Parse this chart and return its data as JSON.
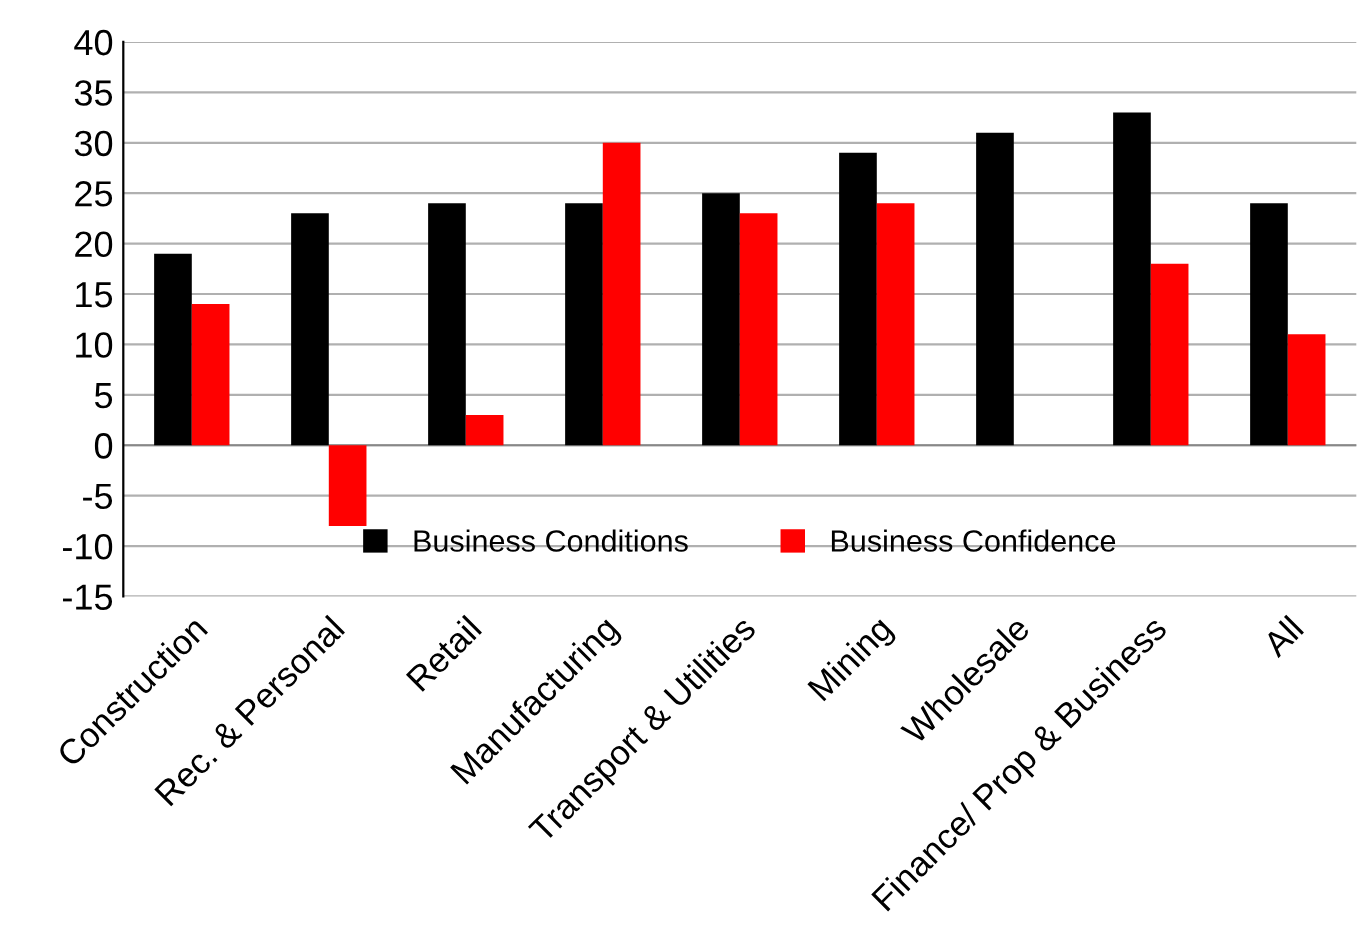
{
  "chart_data": {
    "type": "bar",
    "categories": [
      "Construction",
      "Rec. & Personal",
      "Retail",
      "Manufacturing",
      "Transport & Utilities",
      "Mining",
      "Wholesale",
      "Finance/ Prop & Business",
      "All"
    ],
    "series": [
      {
        "name": "Business Conditions",
        "color": "#000000",
        "values": [
          19,
          23,
          24,
          24,
          25,
          29,
          31,
          33,
          24
        ]
      },
      {
        "name": "Business Confidence",
        "color": "#ff0000",
        "values": [
          14,
          -8,
          3,
          30,
          23,
          24,
          null,
          18,
          11
        ]
      }
    ],
    "ylim": [
      -15,
      40
    ],
    "yticks": [
      -15,
      -10,
      -5,
      0,
      5,
      10,
      15,
      20,
      25,
      30,
      35,
      40
    ],
    "grid": "y",
    "legend": "bottom"
  }
}
